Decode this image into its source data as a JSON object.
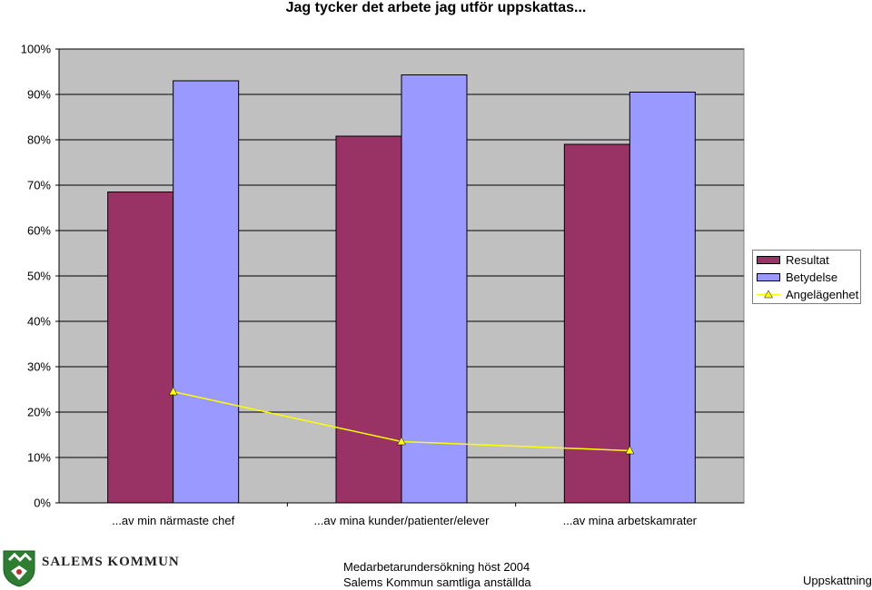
{
  "chart_data": {
    "type": "bar",
    "title": "Jag tycker det arbete jag utför uppskattas...",
    "categories": [
      "...av min närmaste chef",
      "...av mina kunder/patienter/elever",
      "...av mina arbetskamrater"
    ],
    "series": [
      {
        "name": "Resultat",
        "type": "bar",
        "color": "#993366",
        "values": [
          68.5,
          80.8,
          79.0
        ]
      },
      {
        "name": "Betydelse",
        "type": "bar",
        "color": "#9999ff",
        "values": [
          93.0,
          94.3,
          90.5
        ]
      },
      {
        "name": "Angelägenhet",
        "type": "line",
        "color": "#ffff00",
        "marker": "triangle",
        "values": [
          24.5,
          13.5,
          11.5
        ]
      }
    ],
    "ylim": [
      0,
      100
    ],
    "yticks": [
      "0%",
      "10%",
      "20%",
      "30%",
      "40%",
      "50%",
      "60%",
      "70%",
      "80%",
      "90%",
      "100%"
    ],
    "grid": true,
    "legend": "right",
    "plot_background": "#c0c0c0"
  },
  "footer": {
    "logo_text": "SALEMS KOMMUN",
    "survey_line1": "Medarbetarundersökning höst 2004",
    "survey_line2": "Salems Kommun samtliga anställda",
    "label": "Uppskattning"
  }
}
